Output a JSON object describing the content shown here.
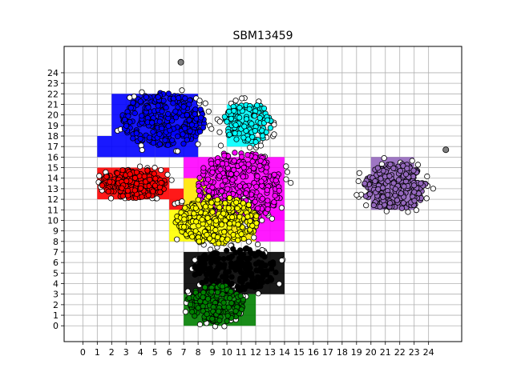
{
  "chart_data": {
    "type": "scatter",
    "title": "SBM13459",
    "xlabel": "",
    "ylabel": "",
    "xlim": [
      -1.3,
      26.3
    ],
    "ylim": [
      -1.5,
      26.5
    ],
    "x_ticks": [
      0,
      1,
      2,
      3,
      4,
      5,
      6,
      7,
      8,
      9,
      10,
      11,
      12,
      13,
      14,
      15,
      16,
      17,
      18,
      19,
      20,
      21,
      22,
      23,
      24
    ],
    "y_ticks": [
      0,
      1,
      2,
      3,
      4,
      5,
      6,
      7,
      8,
      9,
      10,
      11,
      12,
      13,
      14,
      15,
      16,
      17,
      18,
      19,
      20,
      21,
      22,
      23,
      24
    ],
    "grid": true,
    "marker_edge_color": "#000000",
    "series": [
      {
        "color": "#0000ff",
        "shape": "blob",
        "center": [
          5.6,
          19.5
        ],
        "radius": [
          2.9,
          2.6
        ],
        "points": 260,
        "rect_fill": [
          [
            1.0,
            16.0,
            5.0,
            18.0
          ],
          [
            2.0,
            18.0,
            8.0,
            22.0
          ],
          [
            5.0,
            16.0,
            8.0,
            19.0
          ]
        ]
      },
      {
        "color": "#ff0000",
        "shape": "blob",
        "center": [
          3.6,
          13.5
        ],
        "radius": [
          2.3,
          1.4
        ],
        "points": 170,
        "rect_fill": [
          [
            1.0,
            12.0,
            6.0,
            15.0
          ],
          [
            6.0,
            11.0,
            7.0,
            13.0
          ]
        ]
      },
      {
        "color": "#00ffff",
        "shape": "blob",
        "center": [
          11.4,
          19.2
        ],
        "radius": [
          1.7,
          2.0
        ],
        "points": 120,
        "rect_fill": [
          [
            10.0,
            17.0,
            12.0,
            21.0
          ]
        ]
      },
      {
        "color": "#ff00ff",
        "shape": "blob",
        "center": [
          10.9,
          13.3
        ],
        "radius": [
          3.0,
          3.3
        ],
        "points": 300,
        "rect_fill": [
          [
            7.0,
            10.0,
            14.0,
            16.0
          ],
          [
            10.0,
            8.0,
            14.0,
            11.0
          ]
        ]
      },
      {
        "color": "#ffff00",
        "shape": "blob",
        "center": [
          9.3,
          10.0
        ],
        "radius": [
          2.9,
          2.3
        ],
        "points": 300,
        "rect_fill": [
          [
            6.0,
            8.0,
            12.0,
            11.0
          ],
          [
            7.0,
            11.0,
            9.0,
            14.0
          ]
        ]
      },
      {
        "color": "#000000",
        "shape": "blob",
        "center": [
          10.6,
          5.3
        ],
        "radius": [
          2.9,
          2.2
        ],
        "points": 200,
        "rect_fill": [
          [
            7.0,
            3.0,
            14.0,
            7.0
          ]
        ]
      },
      {
        "color": "#008000",
        "shape": "blob",
        "center": [
          9.2,
          2.1
        ],
        "radius": [
          2.0,
          1.8
        ],
        "points": 150,
        "rect_fill": [
          [
            7.0,
            0.0,
            12.0,
            3.0
          ]
        ]
      },
      {
        "color": "#9467bd",
        "shape": "blob",
        "center": [
          21.6,
          13.2
        ],
        "radius": [
          2.2,
          2.3
        ],
        "points": 220,
        "rect_fill": [
          [
            20.0,
            11.0,
            23.0,
            16.0
          ]
        ]
      },
      {
        "color": "#ffffff",
        "shape": "outline",
        "points": 140
      },
      {
        "color": "#808080",
        "shape": "points",
        "x": [
          6.8,
          25.2
        ],
        "y": [
          25.0,
          16.7
        ]
      }
    ]
  }
}
